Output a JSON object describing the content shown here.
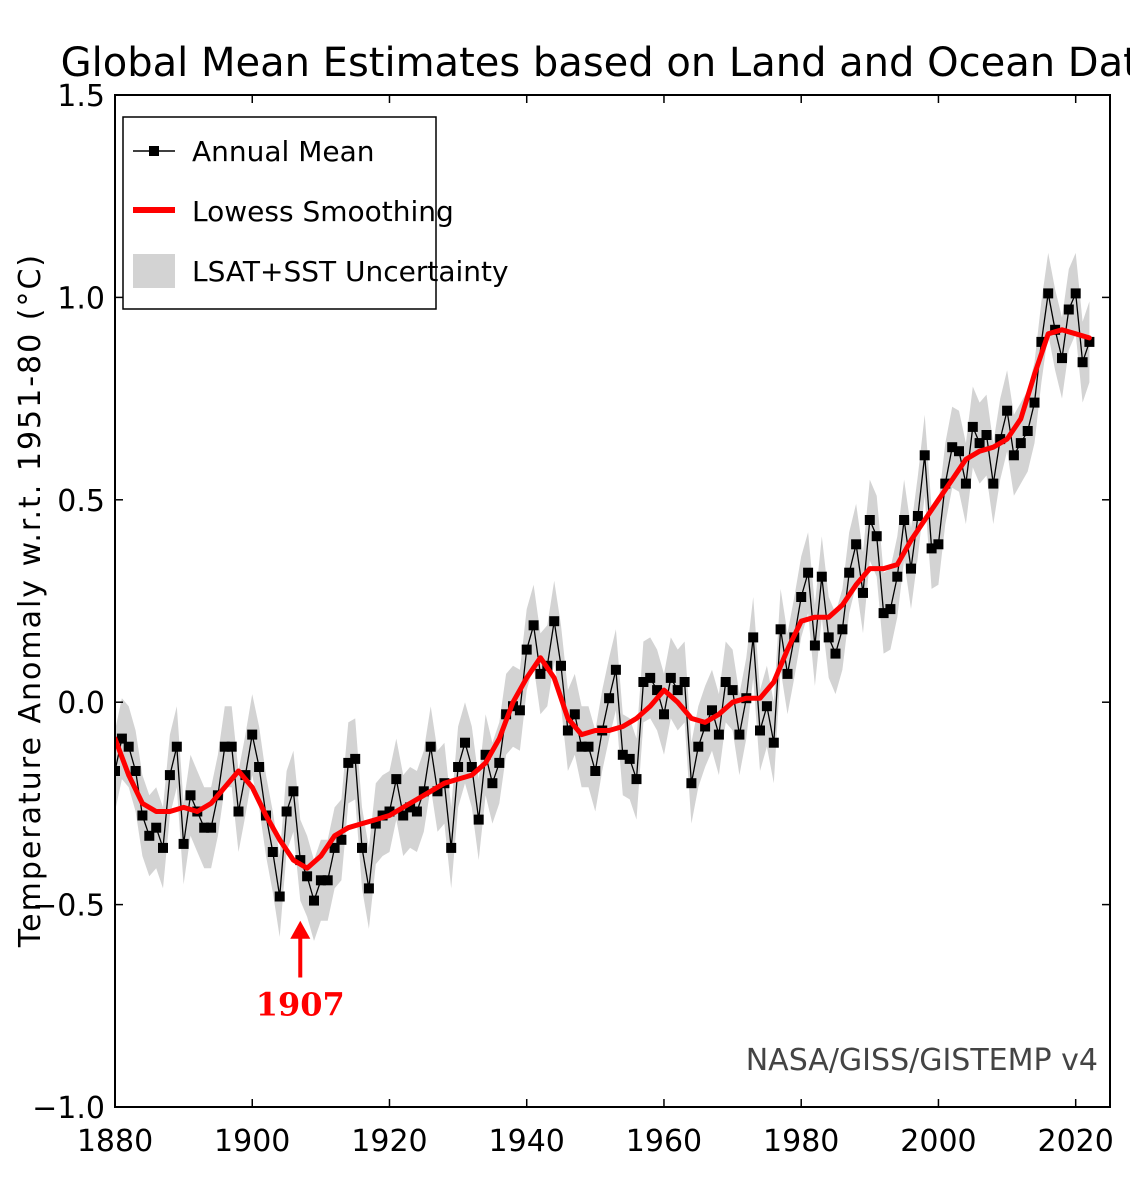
{
  "chart_data": {
    "type": "line",
    "title": "Global Mean Estimates based on Land and Ocean Data",
    "xlabel": "",
    "ylabel": "Temperature Anomaly w.r.t. 1951-80 (°C)",
    "xlim": [
      1880,
      2025
    ],
    "ylim": [
      -1.0,
      1.5
    ],
    "x_ticks": [
      1880,
      1900,
      1920,
      1940,
      1960,
      1980,
      2000,
      2020
    ],
    "y_ticks": [
      1.5,
      1.0,
      0.5,
      0.0,
      -0.5,
      -1.0
    ],
    "y_tick_labels": [
      "1.5",
      "1.0",
      "0.5",
      "0.0",
      "−0.5",
      "−1.0"
    ],
    "legend_position": "top-left",
    "grid": false,
    "series": [
      {
        "name": "Annual Mean",
        "color": "#000000",
        "marker": "square",
        "x": [
          1880,
          1881,
          1882,
          1883,
          1884,
          1885,
          1886,
          1887,
          1888,
          1889,
          1890,
          1891,
          1892,
          1893,
          1894,
          1895,
          1896,
          1897,
          1898,
          1899,
          1900,
          1901,
          1902,
          1903,
          1904,
          1905,
          1906,
          1907,
          1908,
          1909,
          1910,
          1911,
          1912,
          1913,
          1914,
          1915,
          1916,
          1917,
          1918,
          1919,
          1920,
          1921,
          1922,
          1923,
          1924,
          1925,
          1926,
          1927,
          1928,
          1929,
          1930,
          1931,
          1932,
          1933,
          1934,
          1935,
          1936,
          1937,
          1938,
          1939,
          1940,
          1941,
          1942,
          1943,
          1944,
          1945,
          1946,
          1947,
          1948,
          1949,
          1950,
          1951,
          1952,
          1953,
          1954,
          1955,
          1956,
          1957,
          1958,
          1959,
          1960,
          1961,
          1962,
          1963,
          1964,
          1965,
          1966,
          1967,
          1968,
          1969,
          1970,
          1971,
          1972,
          1973,
          1974,
          1975,
          1976,
          1977,
          1978,
          1979,
          1980,
          1981,
          1982,
          1983,
          1984,
          1985,
          1986,
          1987,
          1988,
          1989,
          1990,
          1991,
          1992,
          1993,
          1994,
          1995,
          1996,
          1997,
          1998,
          1999,
          2000,
          2001,
          2002,
          2003,
          2004,
          2005,
          2006,
          2007,
          2008,
          2009,
          2010,
          2011,
          2012,
          2013,
          2014,
          2015,
          2016,
          2017,
          2018,
          2019,
          2020,
          2021,
          2022
        ],
        "values": [
          -0.17,
          -0.09,
          -0.11,
          -0.17,
          -0.28,
          -0.33,
          -0.31,
          -0.36,
          -0.18,
          -0.11,
          -0.35,
          -0.23,
          -0.27,
          -0.31,
          -0.31,
          -0.23,
          -0.11,
          -0.11,
          -0.27,
          -0.18,
          -0.08,
          -0.16,
          -0.28,
          -0.37,
          -0.48,
          -0.27,
          -0.22,
          -0.39,
          -0.43,
          -0.49,
          -0.44,
          -0.44,
          -0.36,
          -0.34,
          -0.15,
          -0.14,
          -0.36,
          -0.46,
          -0.3,
          -0.28,
          -0.27,
          -0.19,
          -0.28,
          -0.26,
          -0.27,
          -0.22,
          -0.11,
          -0.22,
          -0.2,
          -0.36,
          -0.16,
          -0.1,
          -0.16,
          -0.29,
          -0.13,
          -0.2,
          -0.15,
          -0.03,
          -0.01,
          -0.02,
          0.13,
          0.19,
          0.07,
          0.09,
          0.2,
          0.09,
          -0.07,
          -0.03,
          -0.11,
          -0.11,
          -0.17,
          -0.07,
          0.01,
          0.08,
          -0.13,
          -0.14,
          -0.19,
          0.05,
          0.06,
          0.03,
          -0.03,
          0.06,
          0.03,
          0.05,
          -0.2,
          -0.11,
          -0.06,
          -0.02,
          -0.08,
          0.05,
          0.03,
          -0.08,
          0.01,
          0.16,
          -0.07,
          -0.01,
          -0.1,
          0.18,
          0.07,
          0.16,
          0.26,
          0.32,
          0.14,
          0.31,
          0.16,
          0.12,
          0.18,
          0.32,
          0.39,
          0.27,
          0.45,
          0.41,
          0.22,
          0.23,
          0.31,
          0.45,
          0.33,
          0.46,
          0.61,
          0.38,
          0.39,
          0.54,
          0.63,
          0.62,
          0.54,
          0.68,
          0.64,
          0.66,
          0.54,
          0.65,
          0.72,
          0.61,
          0.64,
          0.67,
          0.74,
          0.89,
          1.01,
          0.92,
          0.85,
          0.97,
          1.01,
          0.84,
          0.89
        ]
      },
      {
        "name": "Lowess Smoothing",
        "color": "#ff0000",
        "x": [
          1880,
          1882,
          1884,
          1886,
          1888,
          1890,
          1892,
          1894,
          1896,
          1898,
          1900,
          1902,
          1904,
          1906,
          1908,
          1910,
          1912,
          1914,
          1916,
          1918,
          1920,
          1922,
          1924,
          1926,
          1928,
          1930,
          1932,
          1934,
          1936,
          1938,
          1940,
          1942,
          1944,
          1946,
          1948,
          1950,
          1952,
          1954,
          1956,
          1958,
          1960,
          1962,
          1964,
          1966,
          1968,
          1970,
          1972,
          1974,
          1976,
          1978,
          1980,
          1982,
          1984,
          1986,
          1988,
          1990,
          1992,
          1994,
          1996,
          1998,
          2000,
          2002,
          2004,
          2006,
          2008,
          2010,
          2012,
          2014,
          2016,
          2018,
          2020,
          2022
        ],
        "values": [
          -0.09,
          -0.18,
          -0.25,
          -0.27,
          -0.27,
          -0.26,
          -0.27,
          -0.25,
          -0.21,
          -0.17,
          -0.21,
          -0.28,
          -0.34,
          -0.39,
          -0.41,
          -0.38,
          -0.33,
          -0.31,
          -0.3,
          -0.29,
          -0.28,
          -0.26,
          -0.24,
          -0.22,
          -0.2,
          -0.19,
          -0.18,
          -0.15,
          -0.09,
          0.0,
          0.06,
          0.11,
          0.06,
          -0.04,
          -0.08,
          -0.07,
          -0.07,
          -0.06,
          -0.04,
          -0.01,
          0.03,
          0.0,
          -0.04,
          -0.05,
          -0.03,
          0.0,
          0.01,
          0.01,
          0.05,
          0.13,
          0.2,
          0.21,
          0.21,
          0.24,
          0.29,
          0.33,
          0.33,
          0.34,
          0.4,
          0.45,
          0.5,
          0.55,
          0.6,
          0.62,
          0.63,
          0.65,
          0.7,
          0.81,
          0.91,
          0.92,
          0.91,
          0.9
        ]
      },
      {
        "name": "LSAT+SST Uncertainty",
        "color": "#d3d3d3",
        "half_width": 0.1
      }
    ],
    "annotations": [
      {
        "text": "1907",
        "x": 1907,
        "color": "#ff0000",
        "arrow_from": -0.68,
        "arrow_to": -0.54
      }
    ],
    "credit": "NASA/GISS/GISTEMP v4"
  }
}
